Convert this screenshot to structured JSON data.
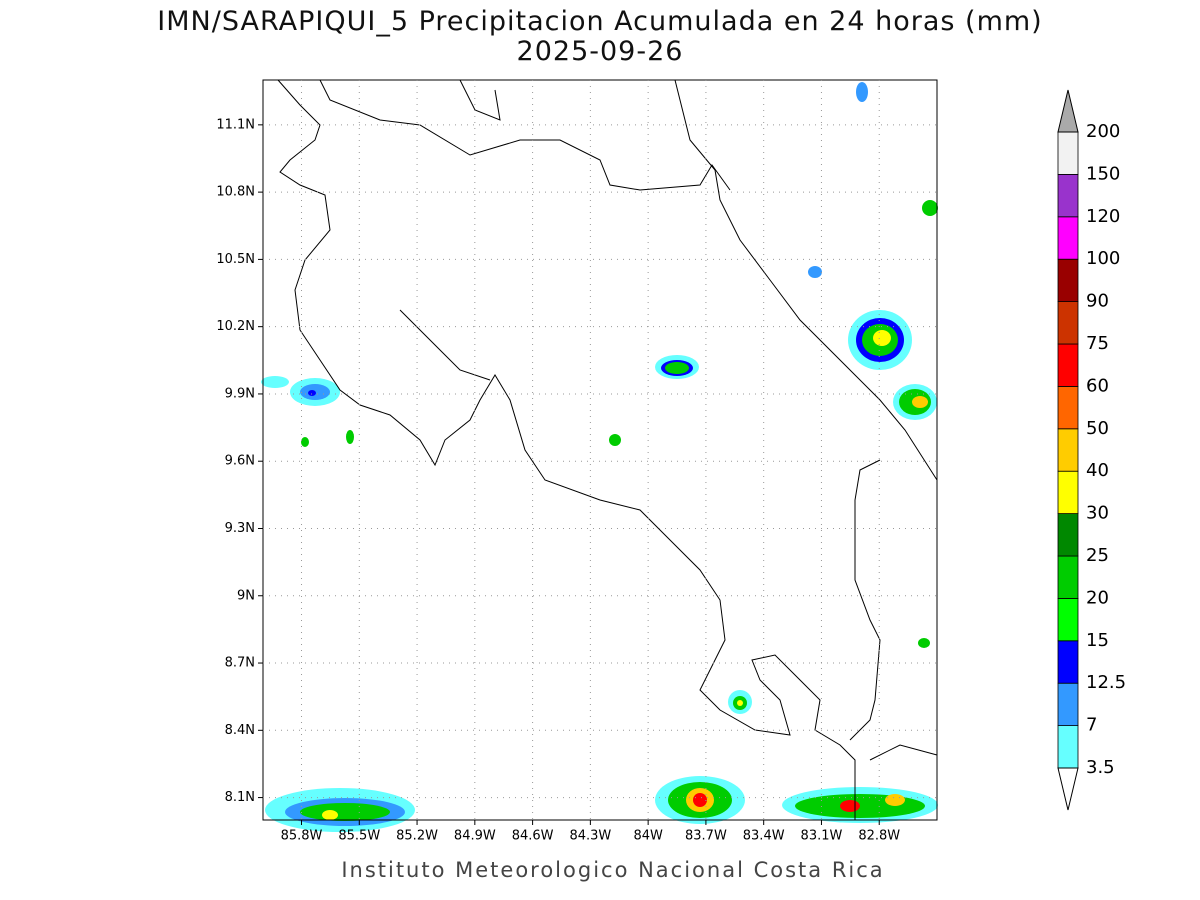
{
  "header": {
    "title": "IMN/SARAPIQUI_5 Precipitacion Acumulada en 24 horas (mm)",
    "subtitle": "2025-09-26"
  },
  "map": {
    "xlim": [
      -86.0,
      -82.5
    ],
    "ylim": [
      8.0,
      11.3
    ],
    "xticks": [
      {
        "value": -85.8,
        "label": "85.8W"
      },
      {
        "value": -85.5,
        "label": "85.5W"
      },
      {
        "value": -85.2,
        "label": "85.2W"
      },
      {
        "value": -84.9,
        "label": "84.9W"
      },
      {
        "value": -84.6,
        "label": "84.6W"
      },
      {
        "value": -84.3,
        "label": "84.3W"
      },
      {
        "value": -84.0,
        "label": "84W"
      },
      {
        "value": -83.7,
        "label": "83.7W"
      },
      {
        "value": -83.4,
        "label": "83.4W"
      },
      {
        "value": -83.1,
        "label": "83.1W"
      },
      {
        "value": -82.8,
        "label": "82.8W"
      }
    ],
    "yticks": [
      {
        "value": 8.1,
        "label": "8.1N"
      },
      {
        "value": 8.4,
        "label": "8.4N"
      },
      {
        "value": 8.7,
        "label": "8.7N"
      },
      {
        "value": 9.0,
        "label": "9N"
      },
      {
        "value": 9.3,
        "label": "9.3N"
      },
      {
        "value": 9.6,
        "label": "9.6N"
      },
      {
        "value": 9.9,
        "label": "9.9N"
      },
      {
        "value": 10.2,
        "label": "10.2N"
      },
      {
        "value": 10.5,
        "label": "10.5N"
      },
      {
        "value": 10.8,
        "label": "10.8N"
      },
      {
        "value": 11.1,
        "label": "11.1N"
      }
    ],
    "grid": true
  },
  "colorbar": {
    "levels": [
      3.5,
      7,
      12.5,
      15,
      20,
      25,
      30,
      40,
      50,
      60,
      75,
      90,
      100,
      120,
      150,
      200
    ],
    "colors": [
      "#66ffff",
      "#3399ff",
      "#0000ff",
      "#00ff00",
      "#00cc00",
      "#008800",
      "#ffff00",
      "#ffcc00",
      "#ff6600",
      "#ff0000",
      "#cc3300",
      "#990000",
      "#ff00ff",
      "#9933cc",
      "#f2f2f2"
    ],
    "under_color": "#ffffff",
    "over_color": "#aaaaaa"
  },
  "footer": "Instituto Meteorologico Nacional Costa Rica"
}
